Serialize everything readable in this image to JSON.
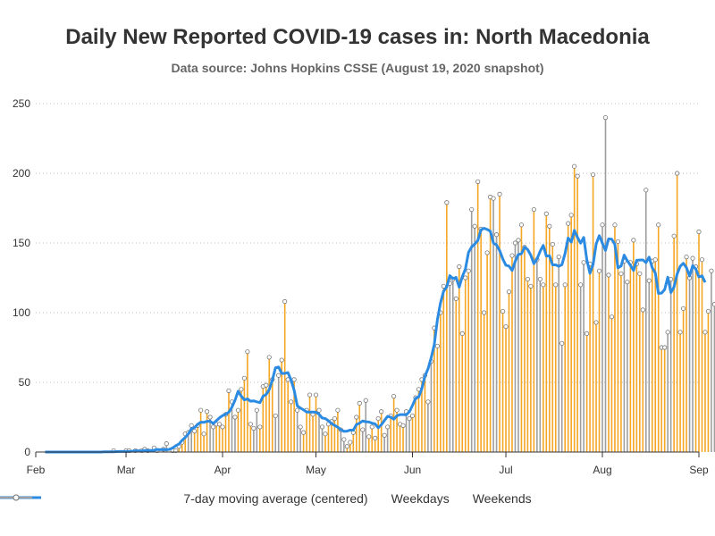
{
  "title": "Daily New Reported COVID-19 cases in: North Macedonia",
  "subtitle": "Data source: Johns Hopkins CSSE (August 19, 2020 snapshot)",
  "colors": {
    "weekday": "#f5a623",
    "weekend": "#9e9e9e",
    "avg": "#2b8ae2",
    "grid": "#bbbbbb",
    "axis": "#333333"
  },
  "chart_data": {
    "type": "bar",
    "x_type": "date",
    "x_range": [
      "2020-02-01",
      "2020-09-01"
    ],
    "ylim": [
      0,
      250
    ],
    "yticks": [
      0,
      50,
      100,
      150,
      200,
      250
    ],
    "xticks": [
      {
        "date": "2020-02-01",
        "label": "Feb"
      },
      {
        "date": "2020-03-01",
        "label": "Mar"
      },
      {
        "date": "2020-04-01",
        "label": "Apr"
      },
      {
        "date": "2020-05-01",
        "label": "May"
      },
      {
        "date": "2020-06-01",
        "label": "Jun"
      },
      {
        "date": "2020-07-01",
        "label": "Jul"
      },
      {
        "date": "2020-08-01",
        "label": "Aug"
      },
      {
        "date": "2020-09-01",
        "label": "Sep"
      }
    ],
    "grid": "horizontal-dotted",
    "legend_position": "bottom",
    "first_date": "2020-02-01",
    "daily_values": [
      0,
      0,
      0,
      0,
      0,
      0,
      0,
      0,
      0,
      0,
      0,
      0,
      0,
      0,
      0,
      0,
      0,
      0,
      0,
      0,
      0,
      0,
      0,
      0,
      0,
      1,
      0,
      0,
      0,
      1,
      1,
      0,
      1,
      0,
      1,
      2,
      1,
      0,
      3,
      1,
      0,
      2,
      6,
      0,
      1,
      1,
      4,
      7,
      13,
      14,
      19,
      15,
      19,
      30,
      13,
      29,
      25,
      18,
      20,
      20,
      18,
      27,
      44,
      36,
      25,
      30,
      45,
      53,
      72,
      20,
      17,
      30,
      18,
      47,
      48,
      68,
      52,
      26,
      55,
      66,
      108,
      52,
      36,
      52,
      30,
      18,
      14,
      30,
      41,
      27,
      41,
      30,
      18,
      13,
      20,
      22,
      24,
      30,
      16,
      9,
      4,
      7,
      14,
      25,
      35,
      16,
      37,
      11,
      18,
      10,
      24,
      29,
      12,
      18,
      26,
      40,
      30,
      20,
      19,
      29,
      24,
      26,
      39,
      45,
      52,
      55,
      36,
      65,
      89,
      76,
      100,
      119,
      179,
      121,
      124,
      110,
      133,
      85,
      125,
      130,
      174,
      162,
      194,
      160,
      100,
      143,
      183,
      182,
      156,
      185,
      101,
      90,
      115,
      141,
      150,
      152,
      163,
      147,
      124,
      119,
      174,
      138,
      124,
      120,
      171,
      162,
      149,
      120,
      140,
      78,
      120,
      164,
      170,
      205,
      198,
      120,
      136,
      85,
      135,
      199,
      93,
      130,
      163,
      240,
      127,
      97,
      163,
      151,
      128,
      137,
      122,
      136,
      152,
      135,
      128,
      102,
      188,
      123,
      137,
      138,
      163,
      75,
      75,
      86,
      124,
      155,
      200,
      86,
      103,
      140,
      125,
      139,
      133,
      158,
      138,
      86,
      101,
      130,
      106
    ],
    "series": [
      {
        "name": "7-day moving average (centered)",
        "kind": "line"
      },
      {
        "name": "Weekdays",
        "kind": "bar"
      },
      {
        "name": "Weekends",
        "kind": "bar"
      }
    ]
  }
}
